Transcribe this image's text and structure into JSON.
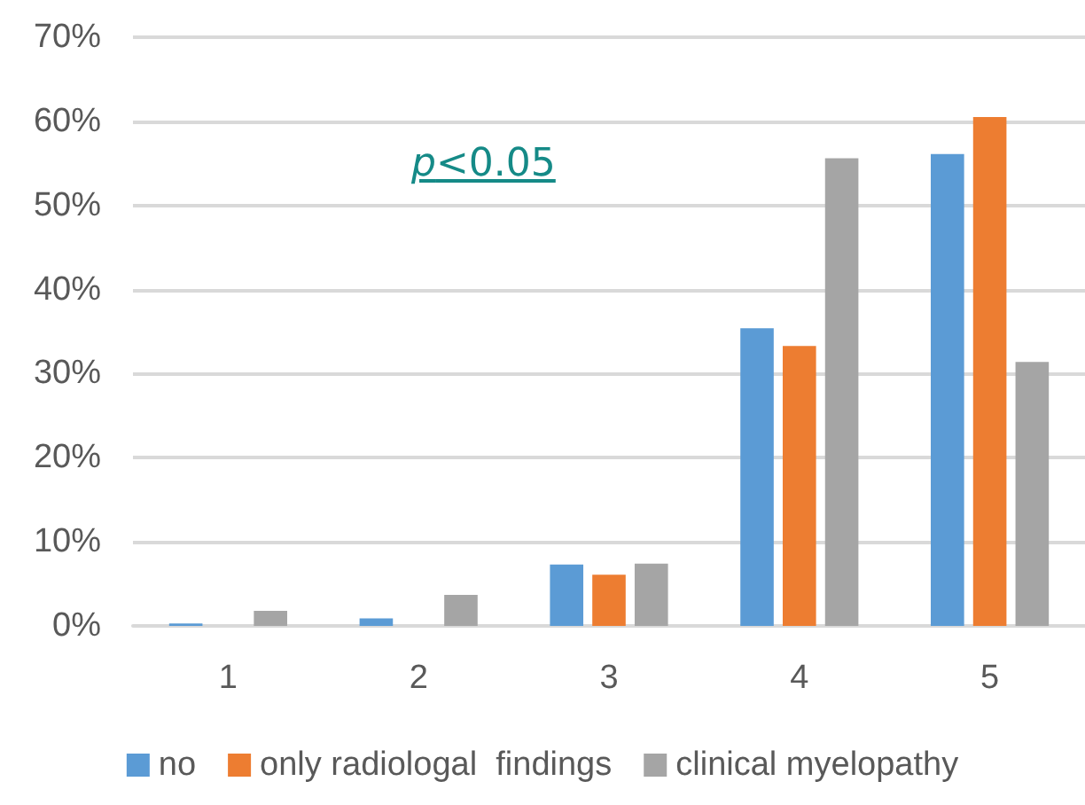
{
  "chart_data": {
    "type": "bar",
    "categories": [
      "1",
      "2",
      "3",
      "4",
      "5"
    ],
    "series": [
      {
        "name": "no",
        "color": "#5b9bd5",
        "values": [
          0.3,
          0.9,
          7.3,
          35.4,
          56.1
        ]
      },
      {
        "name": "only radiologal  findings",
        "color": "#ed7d31",
        "values": [
          0,
          0,
          6.1,
          33.3,
          60.5
        ]
      },
      {
        "name": "clinical myelopathy",
        "color": "#a5a5a5",
        "values": [
          1.8,
          3.7,
          7.4,
          55.6,
          31.4
        ]
      }
    ],
    "ylim": [
      0,
      70
    ],
    "yticks": [
      {
        "value": 0,
        "label": "0%"
      },
      {
        "value": 10,
        "label": "10%"
      },
      {
        "value": 20,
        "label": "20%"
      },
      {
        "value": 30,
        "label": "30%"
      },
      {
        "value": 40,
        "label": "40%"
      },
      {
        "value": 50,
        "label": "50%"
      },
      {
        "value": 60,
        "label": "60%"
      },
      {
        "value": 70,
        "label": "70%"
      }
    ],
    "grid": "y",
    "legend": "bottom",
    "annotations": [
      "p<0.05"
    ]
  }
}
